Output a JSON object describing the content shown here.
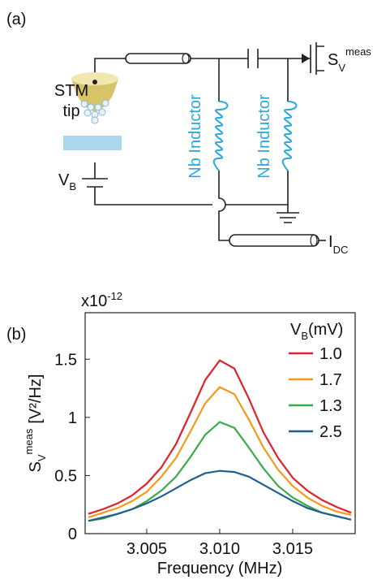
{
  "diagram": {
    "panel_label": "(a)",
    "tip_label": [
      "STM",
      "tip"
    ],
    "bias": {
      "symbol": "V",
      "subscript": "B"
    },
    "output": {
      "symbol": "S",
      "subscript": "V",
      "superscript": "meas"
    },
    "inductors": [
      "Nb Inductor",
      "Nb Inductor"
    ],
    "dc_line": {
      "symbol": "I",
      "subscript": "DC"
    }
  },
  "chart_data": {
    "type": "line",
    "panel_label": "(b)",
    "multiplier": {
      "base": "x10",
      "exponent": "-12"
    },
    "y_label": {
      "symbol": "S",
      "subscript": "V",
      "superscript": "meas",
      "unit": "[V²/Hz]"
    },
    "x_label": "Frequency (MHz)",
    "legend_title": {
      "symbol": "V",
      "subscript": "B",
      "unit": "(mV)"
    },
    "x": [
      3.001,
      3.002,
      3.003,
      3.004,
      3.005,
      3.006,
      3.007,
      3.008,
      3.009,
      3.01,
      3.011,
      3.012,
      3.013,
      3.014,
      3.015,
      3.016,
      3.017,
      3.018,
      3.019
    ],
    "series": [
      {
        "name": "1.0",
        "color": "#e0202a",
        "values": [
          0.17,
          0.21,
          0.26,
          0.33,
          0.43,
          0.57,
          0.77,
          1.04,
          1.32,
          1.49,
          1.42,
          1.16,
          0.87,
          0.65,
          0.48,
          0.37,
          0.29,
          0.23,
          0.18
        ]
      },
      {
        "name": "1.7",
        "color": "#f39a1c",
        "values": [
          0.14,
          0.18,
          0.22,
          0.28,
          0.36,
          0.49,
          0.65,
          0.88,
          1.12,
          1.26,
          1.2,
          0.98,
          0.74,
          0.55,
          0.41,
          0.31,
          0.24,
          0.19,
          0.16
        ]
      },
      {
        "name": "1.3",
        "color": "#3aab48",
        "values": [
          0.11,
          0.13,
          0.17,
          0.21,
          0.28,
          0.37,
          0.49,
          0.66,
          0.85,
          0.96,
          0.91,
          0.74,
          0.56,
          0.41,
          0.31,
          0.24,
          0.18,
          0.15,
          0.12
        ]
      },
      {
        "name": "2.5",
        "color": "#1f5f8b",
        "values": [
          0.11,
          0.14,
          0.17,
          0.21,
          0.26,
          0.32,
          0.39,
          0.46,
          0.52,
          0.54,
          0.53,
          0.49,
          0.42,
          0.35,
          0.28,
          0.22,
          0.18,
          0.15,
          0.12
        ]
      }
    ],
    "xlim": [
      3.00078,
      3.01928
    ],
    "ylim": [
      0,
      1.9
    ],
    "xticks": [
      3.005,
      {
        "value": 3.01,
        "label": "3.010"
      },
      3.015
    ],
    "yticks": [
      0,
      0.5,
      1,
      1.5
    ]
  }
}
